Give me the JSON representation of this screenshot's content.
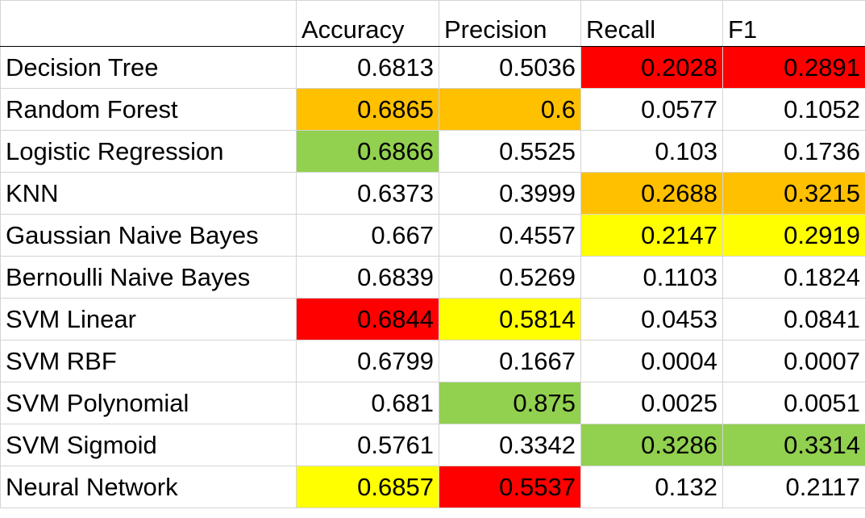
{
  "sheet": {
    "columns": [
      "",
      "Accuracy",
      "Precision",
      "Recall",
      "F1"
    ],
    "colors": {
      "red": "#ff0000",
      "orange": "#ffc000",
      "green": "#92d050",
      "yellow": "#ffff00",
      "none": "#ffffff"
    },
    "rows": [
      {
        "model": "Decision Tree",
        "cells": [
          {
            "value": "0.6813",
            "fill": "none"
          },
          {
            "value": "0.5036",
            "fill": "none"
          },
          {
            "value": "0.2028",
            "fill": "red"
          },
          {
            "value": "0.2891",
            "fill": "red"
          }
        ]
      },
      {
        "model": "Random Forest",
        "cells": [
          {
            "value": "0.6865",
            "fill": "orange"
          },
          {
            "value": "0.6",
            "fill": "orange"
          },
          {
            "value": "0.0577",
            "fill": "none"
          },
          {
            "value": "0.1052",
            "fill": "none"
          }
        ]
      },
      {
        "model": "Logistic Regression",
        "cells": [
          {
            "value": "0.6866",
            "fill": "green"
          },
          {
            "value": "0.5525",
            "fill": "none"
          },
          {
            "value": "0.103",
            "fill": "none"
          },
          {
            "value": "0.1736",
            "fill": "none"
          }
        ]
      },
      {
        "model": "KNN",
        "cells": [
          {
            "value": "0.6373",
            "fill": "none"
          },
          {
            "value": "0.3999",
            "fill": "none"
          },
          {
            "value": "0.2688",
            "fill": "orange"
          },
          {
            "value": "0.3215",
            "fill": "orange"
          }
        ]
      },
      {
        "model": "Gaussian Naive Bayes",
        "cells": [
          {
            "value": "0.667",
            "fill": "none"
          },
          {
            "value": "0.4557",
            "fill": "none"
          },
          {
            "value": "0.2147",
            "fill": "yellow"
          },
          {
            "value": "0.2919",
            "fill": "yellow"
          }
        ]
      },
      {
        "model": "Bernoulli Naive Bayes",
        "cells": [
          {
            "value": "0.6839",
            "fill": "none"
          },
          {
            "value": "0.5269",
            "fill": "none"
          },
          {
            "value": "0.1103",
            "fill": "none"
          },
          {
            "value": "0.1824",
            "fill": "none"
          }
        ]
      },
      {
        "model": "SVM Linear",
        "cells": [
          {
            "value": "0.6844",
            "fill": "red"
          },
          {
            "value": "0.5814",
            "fill": "yellow"
          },
          {
            "value": "0.0453",
            "fill": "none"
          },
          {
            "value": "0.0841",
            "fill": "none"
          }
        ]
      },
      {
        "model": "SVM RBF",
        "cells": [
          {
            "value": "0.6799",
            "fill": "none"
          },
          {
            "value": "0.1667",
            "fill": "none"
          },
          {
            "value": "0.0004",
            "fill": "none"
          },
          {
            "value": "0.0007",
            "fill": "none"
          }
        ]
      },
      {
        "model": "SVM Polynomial",
        "cells": [
          {
            "value": "0.681",
            "fill": "none"
          },
          {
            "value": "0.875",
            "fill": "green"
          },
          {
            "value": "0.0025",
            "fill": "none"
          },
          {
            "value": "0.0051",
            "fill": "none"
          }
        ]
      },
      {
        "model": "SVM Sigmoid",
        "cells": [
          {
            "value": "0.5761",
            "fill": "none"
          },
          {
            "value": "0.3342",
            "fill": "none"
          },
          {
            "value": "0.3286",
            "fill": "green"
          },
          {
            "value": "0.3314",
            "fill": "green"
          }
        ]
      },
      {
        "model": "Neural Network",
        "cells": [
          {
            "value": "0.6857",
            "fill": "yellow"
          },
          {
            "value": "0.5537",
            "fill": "red"
          },
          {
            "value": "0.132",
            "fill": "none"
          },
          {
            "value": "0.2117",
            "fill": "none"
          }
        ]
      }
    ]
  }
}
